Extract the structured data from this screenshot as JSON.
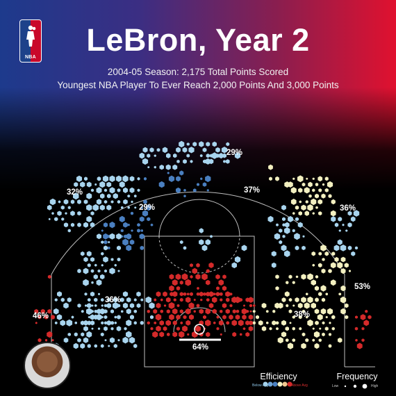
{
  "title": "LeBron, Year 2",
  "subtitle_1": "2004-05 Season: 2,175 Total Points Scored",
  "subtitle_2": "Youngest NBA Player To Ever Reach 2,000 Points And 3,000 Points",
  "logo_text": "NBA",
  "colors": {
    "below_avg": "#a8d4ee",
    "below_avg_mid": "#4a7fc0",
    "average": "#f3f0c0",
    "above_avg": "#d42a2a",
    "court_lines": "#ffffff",
    "background": "#000000"
  },
  "legend": {
    "efficiency_title": "Efficiency",
    "efficiency_low": "Below Avg",
    "efficiency_high": "Above Avg",
    "frequency_title": "Frequency",
    "frequency_low": "Low",
    "frequency_high": "High"
  },
  "chart_data": {
    "type": "heatmap",
    "title": "LeBron, Year 2",
    "zones": [
      {
        "label": "29%",
        "zone": "top of key three"
      },
      {
        "label": "37%",
        "zone": "right elbow mid-range"
      },
      {
        "label": "32%",
        "zone": "left wing three"
      },
      {
        "label": "29%",
        "zone": "left elbow mid-range"
      },
      {
        "label": "36%",
        "zone": "right wing three"
      },
      {
        "label": "36%",
        "zone": "left baseline mid-range"
      },
      {
        "label": "38%",
        "zone": "right baseline mid-range"
      },
      {
        "label": "46%",
        "zone": "left corner three"
      },
      {
        "label": "53%",
        "zone": "right corner three"
      },
      {
        "label": "64%",
        "zone": "restricted area"
      }
    ]
  }
}
